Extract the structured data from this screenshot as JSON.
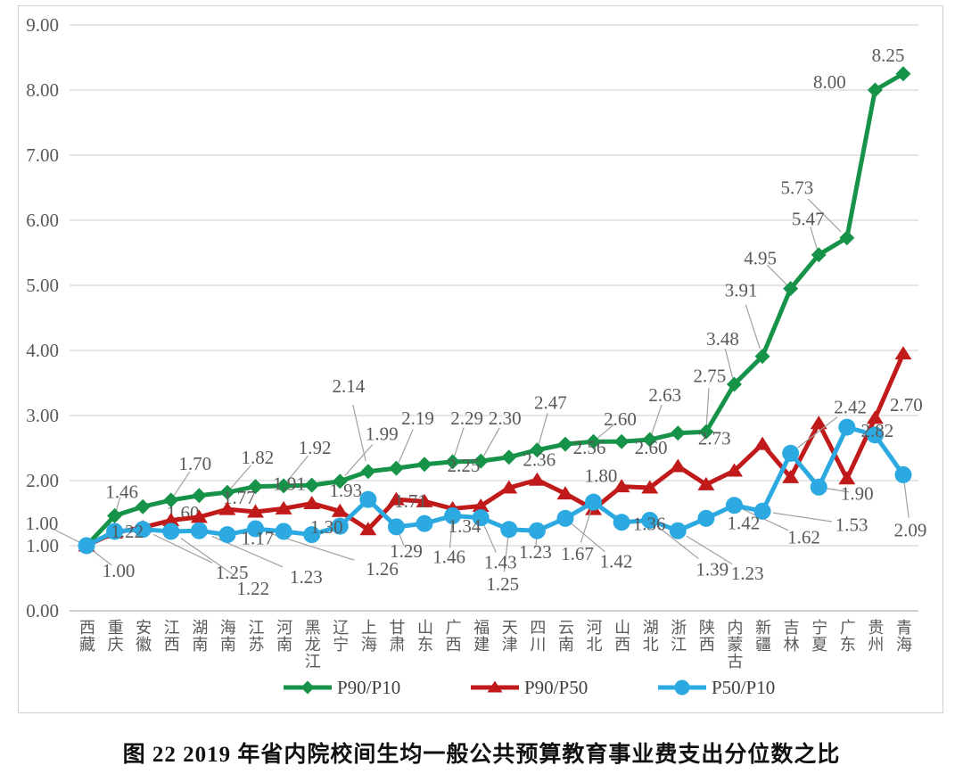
{
  "figure": {
    "caption": "图 22  2019 年省内院校间生均一般公共预算教育事业费支出分位数之比"
  },
  "chart_data": {
    "type": "line",
    "title": "图 22  2019 年省内院校间生均一般公共预算教育事业费支出分位数之比",
    "categories": [
      "西藏",
      "重庆",
      "安徽",
      "江西",
      "湖南",
      "海南",
      "江苏",
      "河南",
      "黑龙江",
      "辽宁",
      "上海",
      "甘肃",
      "山东",
      "广西",
      "福建",
      "天津",
      "四川",
      "云南",
      "河北",
      "山西",
      "湖北",
      "浙江",
      "陕西",
      "内蒙古",
      "新疆",
      "吉林",
      "宁夏",
      "广东",
      "贵州",
      "青海"
    ],
    "ylim": [
      0,
      9
    ],
    "y_ticks": [
      "0.00",
      "1.00",
      "2.00",
      "3.00",
      "4.00",
      "5.00",
      "6.00",
      "7.00",
      "8.00",
      "9.00"
    ],
    "grid": true,
    "legend_position": "bottom",
    "axis_text_color": "#595959",
    "label_text_color": "#595959",
    "gridline_color": "#d6d6d6",
    "border_color": "#cfcfcf",
    "leader_color": "#a0a0a0",
    "series": [
      {
        "name": "P90/P10",
        "color": "#169348",
        "marker": "diamond",
        "values": [
          1.0,
          1.46,
          1.6,
          1.7,
          1.77,
          1.82,
          1.91,
          1.92,
          1.93,
          1.99,
          2.14,
          2.19,
          2.25,
          2.29,
          2.3,
          2.36,
          2.47,
          2.56,
          2.6,
          2.6,
          2.63,
          2.73,
          2.75,
          3.48,
          3.91,
          4.95,
          5.47,
          5.73,
          8.0,
          8.25
        ],
        "point_labels": [
          {
            "i": 0,
            "text": "1.00",
            "dx": -50,
            "dy": -25,
            "leader": true
          },
          {
            "i": 1,
            "text": "1.46",
            "dx": 8,
            "dy": -27,
            "leader": true
          },
          {
            "i": 2,
            "text": "1.60",
            "dx": 45,
            "dy": 7,
            "leader": false
          },
          {
            "i": 3,
            "text": "1.70",
            "dx": 27,
            "dy": -41,
            "leader": true
          },
          {
            "i": 4,
            "text": "1.77",
            "dx": 45,
            "dy": 2,
            "leader": false
          },
          {
            "i": 5,
            "text": "1.82",
            "dx": 34,
            "dy": -39,
            "leader": true
          },
          {
            "i": 6,
            "text": "1.91",
            "dx": 38,
            "dy": -3,
            "leader": false
          },
          {
            "i": 7,
            "text": "1.92",
            "dx": 35,
            "dy": -43,
            "leader": true
          },
          {
            "i": 8,
            "text": "1.93",
            "dx": 38,
            "dy": 6,
            "leader": false
          },
          {
            "i": 9,
            "text": "1.99",
            "dx": 47,
            "dy": -53,
            "leader": true
          },
          {
            "i": 10,
            "text": "2.14",
            "dx": -22,
            "dy": -96,
            "leader": true
          },
          {
            "i": 11,
            "text": "2.19",
            "dx": 24,
            "dy": -56,
            "leader": true
          },
          {
            "i": 12,
            "text": "2.25",
            "dx": 44,
            "dy": 1,
            "leader": false
          },
          {
            "i": 13,
            "text": "2.29",
            "dx": 16,
            "dy": -49,
            "leader": true
          },
          {
            "i": 14,
            "text": "2.30",
            "dx": 27,
            "dy": -48,
            "leader": true
          },
          {
            "i": 15,
            "text": "2.36",
            "dx": 34,
            "dy": 3,
            "leader": false
          },
          {
            "i": 16,
            "text": "2.47",
            "dx": 15,
            "dy": -53,
            "leader": true
          },
          {
            "i": 17,
            "text": "2.56",
            "dx": 27,
            "dy": 4,
            "leader": false
          },
          {
            "i": 18,
            "text": "2.60",
            "dx": 30,
            "dy": -25,
            "leader": true
          },
          {
            "i": 19,
            "text": "2.60",
            "dx": 33,
            "dy": 7,
            "leader": false
          },
          {
            "i": 20,
            "text": "2.63",
            "dx": 17,
            "dy": -50,
            "leader": true
          },
          {
            "i": 21,
            "text": "2.73",
            "dx": 41,
            "dy": 6,
            "leader": false
          },
          {
            "i": 22,
            "text": "2.75",
            "dx": 4,
            "dy": -63,
            "leader": true
          },
          {
            "i": 23,
            "text": "3.48",
            "dx": -13,
            "dy": -51,
            "leader": true
          },
          {
            "i": 24,
            "text": "3.91",
            "dx": -24,
            "dy": -74,
            "leader": true
          },
          {
            "i": 25,
            "text": "4.95",
            "dx": -34,
            "dy": -34,
            "leader": true
          },
          {
            "i": 26,
            "text": "5.47",
            "dx": -12,
            "dy": -40,
            "leader": true
          },
          {
            "i": 27,
            "text": "5.73",
            "dx": -56,
            "dy": -56,
            "leader": true
          },
          {
            "i": 28,
            "text": "8.00",
            "dx": -51,
            "dy": -9,
            "leader": false
          },
          {
            "i": 29,
            "text": "8.25",
            "dx": -17,
            "dy": -21,
            "leader": false
          }
        ]
      },
      {
        "name": "P90/P50",
        "color": "#C11A1A",
        "marker": "triangle",
        "values": [
          1.0,
          1.2,
          1.28,
          1.39,
          1.44,
          1.56,
          1.52,
          1.57,
          1.65,
          1.53,
          1.25,
          1.71,
          1.68,
          1.57,
          1.61,
          1.89,
          2.01,
          1.8,
          1.56,
          1.91,
          1.89,
          2.22,
          1.94,
          2.15,
          2.56,
          2.05,
          2.88,
          2.03,
          2.96,
          3.95
        ],
        "point_labels": [
          {
            "i": 0,
            "text": "1.00",
            "dx": 36,
            "dy": 28,
            "leader": true
          },
          {
            "i": 11,
            "text": "1.71",
            "dx": 16,
            "dy": 2,
            "leader": false
          },
          {
            "i": 17,
            "text": "1.80",
            "dx": 40,
            "dy": -20,
            "leader": false
          }
        ]
      },
      {
        "name": "P50/P10",
        "color": "#2BA9E0",
        "marker": "circle",
        "values": [
          1.0,
          1.22,
          1.25,
          1.22,
          1.23,
          1.17,
          1.26,
          1.22,
          1.17,
          1.3,
          1.71,
          1.29,
          1.34,
          1.46,
          1.43,
          1.25,
          1.23,
          1.42,
          1.67,
          1.36,
          1.39,
          1.23,
          1.42,
          1.62,
          1.53,
          2.42,
          1.9,
          2.82,
          2.7,
          2.09
        ],
        "point_labels": [
          {
            "i": 1,
            "text": "1.22",
            "dx": 14,
            "dy": 0,
            "leader": false
          },
          {
            "i": 2,
            "text": "1.25",
            "dx": 100,
            "dy": 48,
            "leader": true
          },
          {
            "i": 3,
            "text": "1.22",
            "dx": 92,
            "dy": 64,
            "leader": true
          },
          {
            "i": 4,
            "text": "1.23",
            "dx": 120,
            "dy": 52,
            "leader": true
          },
          {
            "i": 5,
            "text": "1.17",
            "dx": 34,
            "dy": 4,
            "leader": false
          },
          {
            "i": 6,
            "text": "1.26",
            "dx": 142,
            "dy": 45,
            "leader": true
          },
          {
            "i": 9,
            "text": "1.30",
            "dx": -15,
            "dy": 1,
            "leader": false
          },
          {
            "i": 11,
            "text": "1.29",
            "dx": 11,
            "dy": 27,
            "leader": true
          },
          {
            "i": 12,
            "text": "1.34",
            "dx": 45,
            "dy": 3,
            "leader": false
          },
          {
            "i": 13,
            "text": "1.46",
            "dx": -4,
            "dy": 46,
            "leader": true
          },
          {
            "i": 14,
            "text": "1.43",
            "dx": 22,
            "dy": 50,
            "leader": true
          },
          {
            "i": 15,
            "text": "1.25",
            "dx": -7,
            "dy": 61,
            "leader": true
          },
          {
            "i": 16,
            "text": "1.23",
            "dx": -2,
            "dy": 24,
            "leader": true
          },
          {
            "i": 17,
            "text": "1.42",
            "dx": 57,
            "dy": 48,
            "leader": true
          },
          {
            "i": 18,
            "text": "1.67",
            "dx": -18,
            "dy": 58,
            "leader": true
          },
          {
            "i": 19,
            "text": "1.36",
            "dx": 31,
            "dy": 2,
            "leader": false
          },
          {
            "i": 20,
            "text": "1.39",
            "dx": 70,
            "dy": 55,
            "leader": true
          },
          {
            "i": 21,
            "text": "1.23",
            "dx": 78,
            "dy": 48,
            "leader": true
          },
          {
            "i": 22,
            "text": "1.42",
            "dx": 42,
            "dy": 5,
            "leader": false
          },
          {
            "i": 23,
            "text": "1.62",
            "dx": 78,
            "dy": 36,
            "leader": true
          },
          {
            "i": 24,
            "text": "1.53",
            "dx": 100,
            "dy": 15,
            "leader": true
          },
          {
            "i": 25,
            "text": "2.42",
            "dx": 67,
            "dy": -52,
            "leader": true
          },
          {
            "i": 26,
            "text": "1.90",
            "dx": 43,
            "dy": 7,
            "leader": true
          },
          {
            "i": 27,
            "text": "2.82",
            "dx": 34,
            "dy": 4,
            "leader": false
          },
          {
            "i": 28,
            "text": "2.70",
            "dx": 35,
            "dy": -34,
            "leader": false
          },
          {
            "i": 29,
            "text": "2.09",
            "dx": 8,
            "dy": 62,
            "leader": true
          }
        ]
      }
    ]
  }
}
